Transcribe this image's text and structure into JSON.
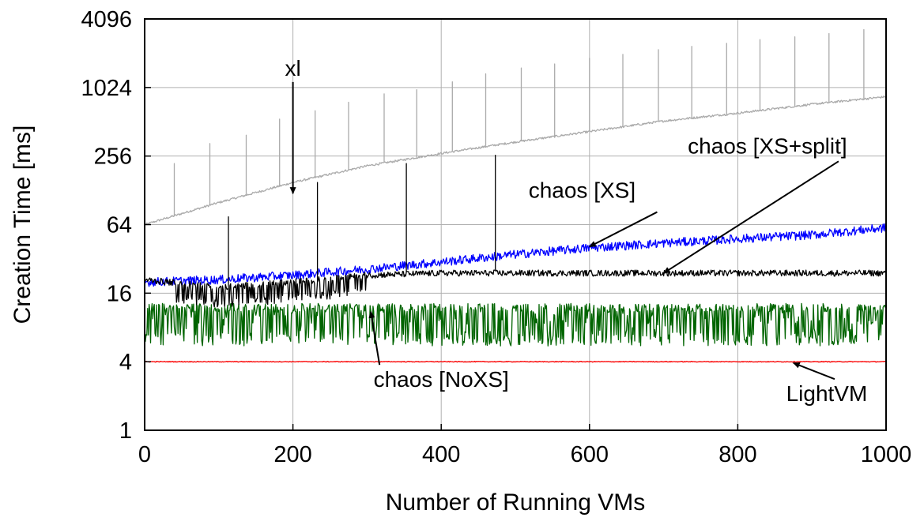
{
  "chart_data": {
    "type": "line",
    "title": "",
    "xlabel": "Number of Running VMs",
    "ylabel": "Creation Time [ms]",
    "xlim": [
      0,
      1000
    ],
    "ylim": [
      1,
      4096
    ],
    "yscale": "log2",
    "xticks": [
      "0",
      "200",
      "400",
      "600",
      "800",
      "1000"
    ],
    "yticks": [
      "1",
      "4",
      "16",
      "64",
      "256",
      "1024",
      "4096"
    ],
    "grid": true,
    "legend": "none",
    "series": [
      {
        "name": "xl",
        "color": "#aaaaaa",
        "x": [
          0,
          100,
          200,
          300,
          400,
          500,
          600,
          700,
          800,
          900,
          1000
        ],
        "y": [
          64,
          100,
          150,
          210,
          270,
          340,
          420,
          520,
          610,
          730,
          850
        ],
        "spikes": [
          {
            "x": 40,
            "y": 220
          },
          {
            "x": 88,
            "y": 330
          },
          {
            "x": 137,
            "y": 390
          },
          {
            "x": 182,
            "y": 540
          },
          {
            "x": 230,
            "y": 640
          },
          {
            "x": 275,
            "y": 760
          },
          {
            "x": 323,
            "y": 900
          },
          {
            "x": 367,
            "y": 980
          },
          {
            "x": 415,
            "y": 1150
          },
          {
            "x": 460,
            "y": 1350
          },
          {
            "x": 508,
            "y": 1520
          },
          {
            "x": 553,
            "y": 1650
          },
          {
            "x": 600,
            "y": 1850
          },
          {
            "x": 645,
            "y": 2000
          },
          {
            "x": 693,
            "y": 2200
          },
          {
            "x": 738,
            "y": 2350
          },
          {
            "x": 785,
            "y": 2500
          },
          {
            "x": 830,
            "y": 2700
          },
          {
            "x": 877,
            "y": 2850
          },
          {
            "x": 923,
            "y": 3050
          },
          {
            "x": 970,
            "y": 3300
          }
        ]
      },
      {
        "name": "chaos [XS]",
        "color": "#0000ff",
        "x": [
          0,
          100,
          200,
          300,
          400,
          500,
          600,
          700,
          800,
          900,
          1000
        ],
        "y": [
          20,
          21,
          23,
          26,
          30,
          35,
          40,
          44,
          48,
          52,
          60
        ]
      },
      {
        "name": "chaos [XS+split]",
        "color": "#000000",
        "x": [
          0,
          100,
          200,
          300,
          400,
          500,
          600,
          700,
          800,
          900,
          1000
        ],
        "y": [
          21,
          18,
          20,
          23,
          24,
          24,
          24,
          24,
          24,
          24,
          24
        ],
        "spikes": [
          {
            "x": 113,
            "y": 75
          },
          {
            "x": 233,
            "y": 150
          },
          {
            "x": 353,
            "y": 220
          },
          {
            "x": 473,
            "y": 260
          }
        ]
      },
      {
        "name": "chaos [NoXS]",
        "color": "#006400",
        "x": [
          0,
          100,
          200,
          300,
          400,
          500,
          600,
          700,
          800,
          900,
          1000
        ],
        "y": [
          10,
          10,
          10,
          10,
          10,
          10,
          10,
          10,
          10,
          10,
          10
        ],
        "band": [
          5.5,
          13
        ]
      },
      {
        "name": "LightVM",
        "color": "#ff0000",
        "x": [
          0,
          100,
          200,
          300,
          400,
          500,
          600,
          700,
          800,
          900,
          1000
        ],
        "y": [
          4,
          4,
          4,
          4,
          4,
          4,
          4,
          4,
          4,
          4,
          4
        ]
      }
    ],
    "annotations": [
      {
        "text": "xl",
        "label_x": 200,
        "label_y": 1300,
        "point_x": 200,
        "point_y": 120
      },
      {
        "text": "chaos [XS]",
        "label_x": 590,
        "label_y": 110,
        "point_x": 600,
        "point_y": 41
      },
      {
        "text": "chaos [XS+split]",
        "label_x": 840,
        "label_y": 270,
        "point_x": 700,
        "point_y": 24
      },
      {
        "text": "chaos [NoXS]",
        "label_x": 400,
        "label_y": 2.4,
        "point_x": 305,
        "point_y": 11
      },
      {
        "text": "LightVM",
        "label_x": 920,
        "label_y": 1.8,
        "point_x": 875,
        "point_y": 3.9
      }
    ]
  }
}
